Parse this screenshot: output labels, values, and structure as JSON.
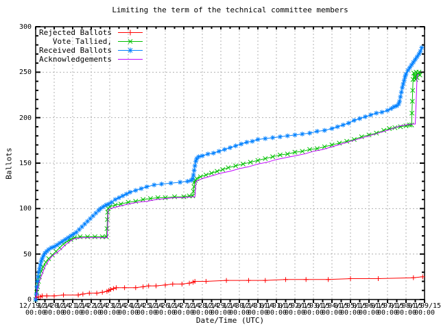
{
  "title": "Limiting the term of the technical committee members",
  "axes": {
    "ylabel": "Ballots",
    "xlabel": "Date/Time (UTC)",
    "y_ticks": [
      0,
      50,
      100,
      150,
      200,
      250,
      300
    ],
    "y_minor_step": 10,
    "ylim": [
      0,
      300
    ],
    "x_minor_step_days": 0.5,
    "x_tick_time_label": "00:00",
    "x_tick_date_labels": [
      "12/19/14",
      "12/20/14",
      "12/21/14",
      "12/22/14",
      "12/23/14",
      "12/24/14",
      "12/25/14",
      "12/26/14",
      "12/27/14",
      "12/28/14",
      "12/29/14",
      "12/30/14",
      "12/31/14",
      "01/01/15",
      "01/02/15",
      "01/03/15",
      "01/04/15",
      "01/05/15",
      "01/06/15",
      "01/07/15",
      "01/08/15",
      "01/09/15"
    ],
    "xlim_days": [
      0,
      21
    ]
  },
  "colors": {
    "background": "#ffffff",
    "frame": "#000000",
    "grid": "#b0b0b0",
    "text": "#000000",
    "rejected": "#ff0000",
    "tallied": "#00c000",
    "received": "#0080ff",
    "acknowledgements": "#c000ff"
  },
  "legend_position": "top-left-inside",
  "chart_data": {
    "type": "line",
    "x_unit": "days since 12/19/14 00:00 UTC",
    "xlabel": "Date/Time (UTC)",
    "ylabel": "Ballots",
    "ylim": [
      0,
      300
    ],
    "grid": true,
    "series": [
      {
        "name": "Rejected Ballots",
        "color": "#ff0000",
        "marker": "plus",
        "points": [
          [
            0,
            0
          ],
          [
            0.05,
            2
          ],
          [
            0.15,
            3
          ],
          [
            0.25,
            3
          ],
          [
            0.35,
            4
          ],
          [
            0.6,
            4
          ],
          [
            1.0,
            4
          ],
          [
            1.5,
            5
          ],
          [
            2.3,
            5
          ],
          [
            2.55,
            6
          ],
          [
            2.9,
            7
          ],
          [
            3.3,
            7
          ],
          [
            3.6,
            8
          ],
          [
            3.85,
            9
          ],
          [
            3.95,
            10
          ],
          [
            4.05,
            11
          ],
          [
            4.2,
            12
          ],
          [
            4.35,
            13
          ],
          [
            4.8,
            13
          ],
          [
            5.4,
            13
          ],
          [
            5.8,
            14
          ],
          [
            6.1,
            15
          ],
          [
            6.5,
            15
          ],
          [
            7.0,
            16
          ],
          [
            7.4,
            17
          ],
          [
            7.9,
            17
          ],
          [
            8.3,
            18
          ],
          [
            8.5,
            19
          ],
          [
            8.6,
            20
          ],
          [
            9.2,
            20
          ],
          [
            10.3,
            21
          ],
          [
            11.5,
            21
          ],
          [
            12.4,
            21
          ],
          [
            13.5,
            22
          ],
          [
            14.6,
            22
          ],
          [
            15.8,
            22
          ],
          [
            17.0,
            23
          ],
          [
            18.5,
            23
          ],
          [
            20.4,
            24
          ],
          [
            20.9,
            25
          ]
        ]
      },
      {
        "name": "Vote Tallied,",
        "color": "#00c000",
        "marker": "cross",
        "points": [
          [
            0,
            0
          ],
          [
            0.06,
            8
          ],
          [
            0.1,
            14
          ],
          [
            0.15,
            20
          ],
          [
            0.2,
            25
          ],
          [
            0.3,
            31
          ],
          [
            0.4,
            36
          ],
          [
            0.55,
            41
          ],
          [
            0.7,
            45
          ],
          [
            0.9,
            49
          ],
          [
            1.1,
            53
          ],
          [
            1.3,
            57
          ],
          [
            1.5,
            61
          ],
          [
            1.7,
            64
          ],
          [
            1.9,
            66
          ],
          [
            2.1,
            68
          ],
          [
            2.4,
            69
          ],
          [
            2.8,
            69
          ],
          [
            3.2,
            69
          ],
          [
            3.6,
            69
          ],
          [
            3.82,
            69
          ],
          [
            3.85,
            78
          ],
          [
            3.87,
            88
          ],
          [
            3.89,
            96
          ],
          [
            3.92,
            100
          ],
          [
            4.0,
            102
          ],
          [
            4.3,
            104
          ],
          [
            4.6,
            105
          ],
          [
            5.0,
            107
          ],
          [
            5.4,
            108
          ],
          [
            5.8,
            110
          ],
          [
            6.2,
            111
          ],
          [
            6.6,
            112
          ],
          [
            7.0,
            112
          ],
          [
            7.5,
            113
          ],
          [
            8.0,
            113
          ],
          [
            8.3,
            114
          ],
          [
            8.48,
            114
          ],
          [
            8.52,
            119
          ],
          [
            8.55,
            124
          ],
          [
            8.58,
            129
          ],
          [
            8.62,
            131
          ],
          [
            8.7,
            133
          ],
          [
            8.9,
            135
          ],
          [
            9.2,
            137
          ],
          [
            9.5,
            139
          ],
          [
            9.8,
            141
          ],
          [
            10.1,
            143
          ],
          [
            10.4,
            145
          ],
          [
            10.8,
            147
          ],
          [
            11.2,
            149
          ],
          [
            11.6,
            151
          ],
          [
            12.0,
            153
          ],
          [
            12.4,
            155
          ],
          [
            12.8,
            157
          ],
          [
            13.2,
            159
          ],
          [
            13.6,
            160
          ],
          [
            14.0,
            162
          ],
          [
            14.4,
            163
          ],
          [
            14.8,
            165
          ],
          [
            15.2,
            166
          ],
          [
            15.6,
            168
          ],
          [
            16.0,
            170
          ],
          [
            16.4,
            172
          ],
          [
            16.8,
            174
          ],
          [
            17.2,
            176
          ],
          [
            17.6,
            179
          ],
          [
            18.0,
            181
          ],
          [
            18.4,
            183
          ],
          [
            18.8,
            186
          ],
          [
            19.1,
            188
          ],
          [
            19.4,
            189
          ],
          [
            19.7,
            190
          ],
          [
            20.0,
            191
          ],
          [
            20.2,
            192
          ],
          [
            20.3,
            192
          ],
          [
            20.32,
            205
          ],
          [
            20.34,
            218
          ],
          [
            20.36,
            230
          ],
          [
            20.38,
            242
          ],
          [
            20.42,
            249
          ],
          [
            20.48,
            245
          ],
          [
            20.52,
            242
          ],
          [
            20.55,
            250
          ],
          [
            20.6,
            244
          ],
          [
            20.65,
            248
          ],
          [
            20.7,
            250
          ],
          [
            20.75,
            247
          ]
        ]
      },
      {
        "name": "Received Ballots",
        "color": "#0080ff",
        "marker": "asterisk",
        "points": [
          [
            0,
            0
          ],
          [
            0.04,
            6
          ],
          [
            0.07,
            14
          ],
          [
            0.1,
            20
          ],
          [
            0.13,
            25
          ],
          [
            0.17,
            30
          ],
          [
            0.21,
            34
          ],
          [
            0.25,
            38
          ],
          [
            0.3,
            42
          ],
          [
            0.35,
            45
          ],
          [
            0.42,
            48
          ],
          [
            0.5,
            51
          ],
          [
            0.6,
            53
          ],
          [
            0.7,
            55
          ],
          [
            0.85,
            57
          ],
          [
            1.0,
            58
          ],
          [
            1.15,
            60
          ],
          [
            1.3,
            62
          ],
          [
            1.45,
            64
          ],
          [
            1.6,
            66
          ],
          [
            1.75,
            68
          ],
          [
            1.9,
            70
          ],
          [
            2.05,
            72
          ],
          [
            2.2,
            74
          ],
          [
            2.35,
            77
          ],
          [
            2.5,
            80
          ],
          [
            2.65,
            83
          ],
          [
            2.8,
            86
          ],
          [
            2.95,
            89
          ],
          [
            3.1,
            92
          ],
          [
            3.25,
            95
          ],
          [
            3.4,
            98
          ],
          [
            3.5,
            100
          ],
          [
            3.65,
            102
          ],
          [
            3.8,
            104
          ],
          [
            3.95,
            105
          ],
          [
            4.1,
            107
          ],
          [
            4.3,
            110
          ],
          [
            4.5,
            112
          ],
          [
            4.7,
            114
          ],
          [
            4.9,
            116
          ],
          [
            5.1,
            118
          ],
          [
            5.4,
            120
          ],
          [
            5.7,
            122
          ],
          [
            6.0,
            124
          ],
          [
            6.4,
            126
          ],
          [
            6.8,
            127
          ],
          [
            7.3,
            128
          ],
          [
            7.8,
            129
          ],
          [
            8.2,
            130
          ],
          [
            8.4,
            131
          ],
          [
            8.48,
            133
          ],
          [
            8.52,
            137
          ],
          [
            8.56,
            142
          ],
          [
            8.6,
            147
          ],
          [
            8.65,
            152
          ],
          [
            8.7,
            155
          ],
          [
            8.8,
            157
          ],
          [
            9.0,
            158
          ],
          [
            9.3,
            160
          ],
          [
            9.6,
            161
          ],
          [
            9.9,
            163
          ],
          [
            10.2,
            165
          ],
          [
            10.5,
            167
          ],
          [
            10.8,
            169
          ],
          [
            11.1,
            171
          ],
          [
            11.4,
            173
          ],
          [
            11.7,
            174
          ],
          [
            12.0,
            176
          ],
          [
            12.4,
            177
          ],
          [
            12.8,
            178
          ],
          [
            13.2,
            179
          ],
          [
            13.6,
            180
          ],
          [
            14.0,
            181
          ],
          [
            14.4,
            182
          ],
          [
            14.8,
            183
          ],
          [
            15.2,
            185
          ],
          [
            15.6,
            186
          ],
          [
            16.0,
            188
          ],
          [
            16.3,
            190
          ],
          [
            16.6,
            192
          ],
          [
            16.9,
            194
          ],
          [
            17.2,
            197
          ],
          [
            17.5,
            199
          ],
          [
            17.8,
            201
          ],
          [
            18.1,
            203
          ],
          [
            18.4,
            205
          ],
          [
            18.7,
            206
          ],
          [
            19.0,
            208
          ],
          [
            19.2,
            210
          ],
          [
            19.35,
            212
          ],
          [
            19.5,
            213
          ],
          [
            19.6,
            215
          ],
          [
            19.65,
            218
          ],
          [
            19.7,
            223
          ],
          [
            19.75,
            228
          ],
          [
            19.8,
            233
          ],
          [
            19.85,
            237
          ],
          [
            19.9,
            241
          ],
          [
            19.95,
            245
          ],
          [
            20.0,
            248
          ],
          [
            20.1,
            252
          ],
          [
            20.2,
            255
          ],
          [
            20.3,
            258
          ],
          [
            20.4,
            261
          ],
          [
            20.5,
            264
          ],
          [
            20.6,
            267
          ],
          [
            20.7,
            270
          ],
          [
            20.78,
            273
          ],
          [
            20.85,
            277
          ]
        ]
      },
      {
        "name": "Acknowledgements",
        "color": "#c000ff",
        "marker": "none",
        "points": [
          [
            0,
            0
          ],
          [
            0.1,
            12
          ],
          [
            0.2,
            20
          ],
          [
            0.35,
            28
          ],
          [
            0.5,
            36
          ],
          [
            0.7,
            43
          ],
          [
            0.9,
            48
          ],
          [
            1.1,
            51
          ],
          [
            1.35,
            55
          ],
          [
            1.6,
            60
          ],
          [
            1.85,
            64
          ],
          [
            2.1,
            67
          ],
          [
            2.5,
            68
          ],
          [
            3.0,
            68
          ],
          [
            3.5,
            68
          ],
          [
            3.87,
            68
          ],
          [
            3.92,
            99
          ],
          [
            4.2,
            101
          ],
          [
            4.6,
            103
          ],
          [
            5.0,
            105
          ],
          [
            5.5,
            107
          ],
          [
            6.0,
            108
          ],
          [
            6.5,
            110
          ],
          [
            7.0,
            111
          ],
          [
            7.5,
            112
          ],
          [
            8.0,
            112
          ],
          [
            8.4,
            113
          ],
          [
            8.6,
            113
          ],
          [
            8.66,
            130
          ],
          [
            9.0,
            133
          ],
          [
            9.5,
            136
          ],
          [
            10.0,
            139
          ],
          [
            10.5,
            141
          ],
          [
            11.0,
            144
          ],
          [
            11.5,
            146
          ],
          [
            12.0,
            149
          ],
          [
            12.5,
            151
          ],
          [
            13.0,
            154
          ],
          [
            13.5,
            156
          ],
          [
            14.0,
            158
          ],
          [
            14.5,
            160
          ],
          [
            15.0,
            163
          ],
          [
            15.5,
            165
          ],
          [
            16.0,
            168
          ],
          [
            16.5,
            171
          ],
          [
            17.0,
            174
          ],
          [
            17.5,
            177
          ],
          [
            18.0,
            180
          ],
          [
            18.5,
            183
          ],
          [
            19.0,
            186
          ],
          [
            19.4,
            189
          ],
          [
            19.7,
            191
          ],
          [
            20.0,
            192
          ],
          [
            20.3,
            193
          ],
          [
            20.5,
            193
          ],
          [
            20.55,
            220
          ],
          [
            20.6,
            247
          ],
          [
            20.7,
            248
          ]
        ]
      }
    ]
  }
}
